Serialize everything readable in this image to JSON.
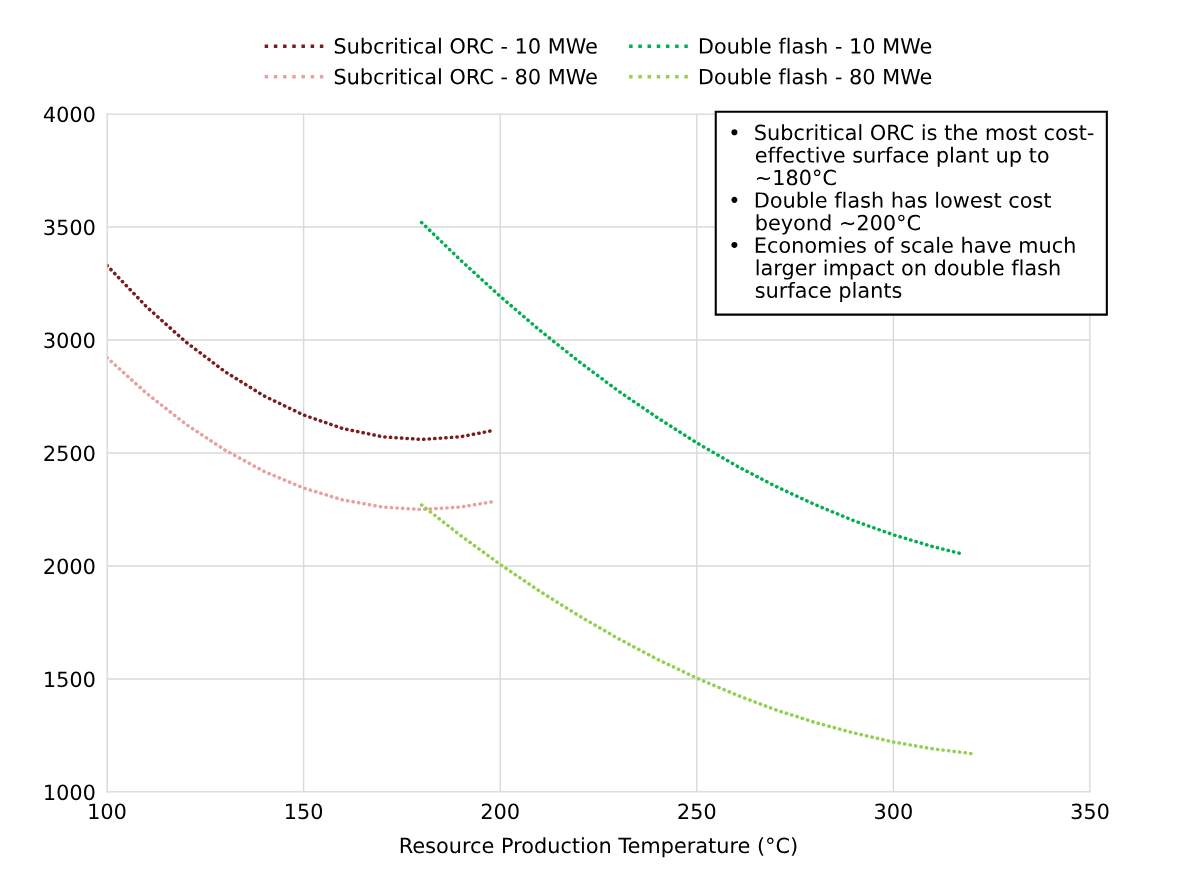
{
  "chart_data": {
    "type": "line",
    "xlabel": "Resource Production Temperature (°C)",
    "xlim": [
      100,
      350
    ],
    "xticks": [
      100,
      150,
      200,
      250,
      300,
      350
    ],
    "ylim": [
      1000,
      4000
    ],
    "yticks": [
      1000,
      1500,
      2000,
      2500,
      3000,
      3500,
      4000
    ],
    "grid": true,
    "legend": "top",
    "line_style": "dotted",
    "marker": "none",
    "series": [
      {
        "name": "Subcritical ORC - 10 MWe",
        "color": "#7b1c1c",
        "x": [
          100,
          110,
          120,
          130,
          140,
          150,
          160,
          170,
          180,
          190,
          198
        ],
        "values": [
          3330,
          3148,
          2992,
          2860,
          2752,
          2668,
          2608,
          2572,
          2560,
          2572,
          2599
        ]
      },
      {
        "name": "Subcritical ORC - 80 MWe",
        "color": "#e8a0a0",
        "x": [
          100,
          110,
          120,
          130,
          140,
          150,
          160,
          170,
          180,
          190,
          198
        ],
        "values": [
          2922,
          2765,
          2628,
          2513,
          2418,
          2345,
          2292,
          2261,
          2250,
          2261,
          2284
        ]
      },
      {
        "name": "Double flash - 10 MWe",
        "color": "#00b050",
        "x": [
          180,
          190,
          200,
          210,
          220,
          230,
          240,
          250,
          260,
          270,
          280,
          290,
          300,
          310,
          318
        ],
        "values": [
          3520,
          3352,
          3193,
          3044,
          2905,
          2775,
          2656,
          2545,
          2444,
          2353,
          2272,
          2200,
          2138,
          2086,
          2051
        ]
      },
      {
        "name": "Double flash - 80 MWe",
        "color": "#92d050",
        "x": [
          180,
          190,
          200,
          210,
          220,
          230,
          240,
          250,
          260,
          270,
          280,
          290,
          300,
          310,
          320
        ],
        "values": [
          2270,
          2134,
          2007,
          1889,
          1780,
          1679,
          1587,
          1504,
          1430,
          1364,
          1308,
          1261,
          1221,
          1191,
          1170
        ]
      }
    ],
    "annotations": [
      "•  Subcritical ORC is the most cost-\n    effective surface plant up to\n    ~180°C\n•  Double flash has lowest cost\n    beyond ~200°C\n•  Economies of scale have much\n    larger impact on double flash\n    surface plants"
    ]
  }
}
